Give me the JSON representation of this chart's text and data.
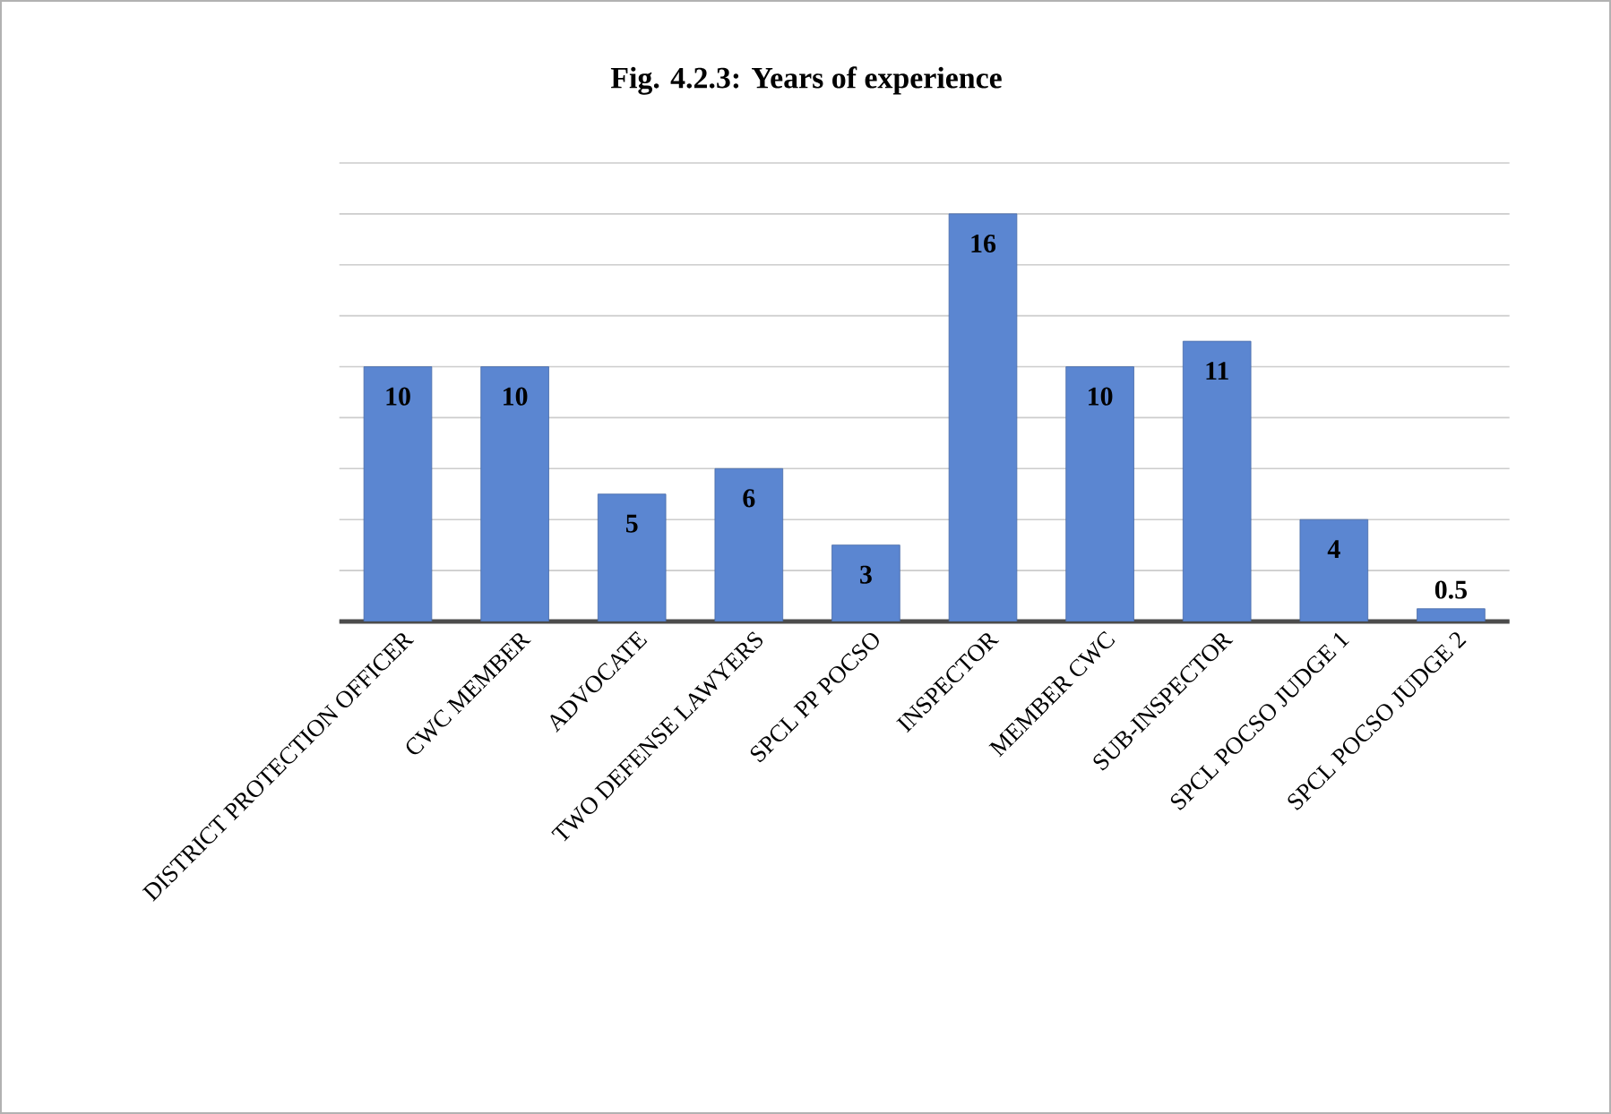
{
  "chart_data": {
    "type": "bar",
    "title": "Fig. 4.2.3: Years of experience",
    "categories": [
      "DISTRICT PROTECTION OFFICER",
      "CWC MEMBER",
      "ADVOCATE",
      "TWO DEFENSE LAWYERS",
      "SPCL PP POCSO",
      "INSPECTOR",
      "MEMBER CWC",
      "SUB-INSPECTOR",
      "SPCL POCSO JUDGE 1",
      "SPCL POCSO JUDGE 2"
    ],
    "values": [
      10,
      10,
      5,
      6,
      3,
      16,
      10,
      11,
      4,
      0.5
    ],
    "color": "#5b86d1",
    "ylim": [
      0,
      18
    ],
    "yticks": [
      {
        "value": 0,
        "label": null
      },
      {
        "value": 2,
        "label": null
      },
      {
        "value": 4,
        "label": null
      },
      {
        "value": 6,
        "label": null
      },
      {
        "value": 8,
        "label": null
      },
      {
        "value": 10,
        "label": null
      },
      {
        "value": 12,
        "label": null
      },
      {
        "value": 14,
        "label": null
      },
      {
        "value": 16,
        "label": null
      },
      {
        "value": 18,
        "label": null
      }
    ],
    "grid": "y",
    "tick_labels": "x",
    "data_labels": true
  }
}
